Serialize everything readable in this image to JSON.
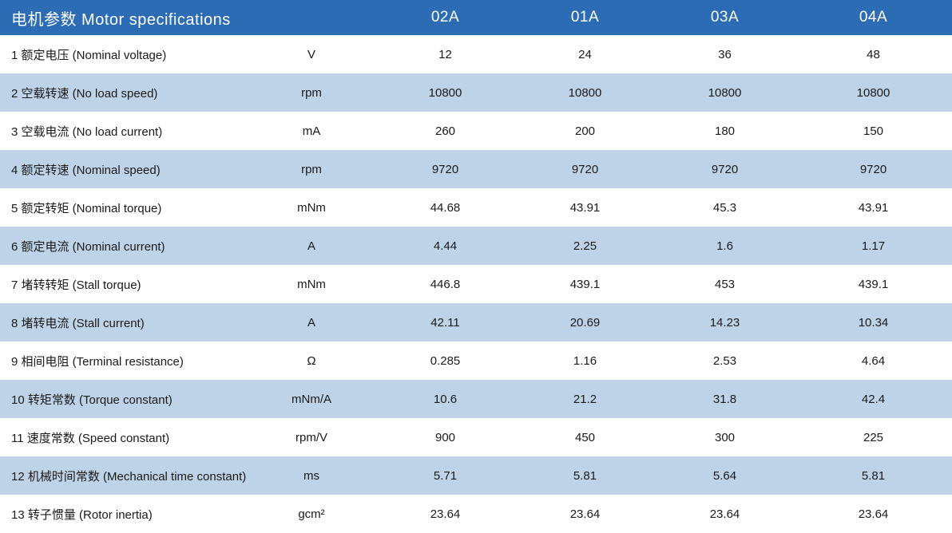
{
  "table": {
    "title": "电机参数 Motor specifications",
    "unit_column_header": "",
    "model_columns": [
      "02A",
      "01A",
      "03A",
      "04A"
    ]
  },
  "colors": {
    "header_bg": "#2B6CB4",
    "alt_row_bg": "#BFD3E8",
    "header_text": "#FFFFFF",
    "body_text": "#1A1A1A"
  },
  "rows": [
    {
      "label": "1 额定电压 (Nominal voltage)",
      "unit": "V",
      "values": [
        "12",
        "24",
        "36",
        "48"
      ]
    },
    {
      "label": "2 空载转速 (No load speed)",
      "unit": "rpm",
      "values": [
        "10800",
        "10800",
        "10800",
        "10800"
      ]
    },
    {
      "label": "3 空载电流 (No load current)",
      "unit": "mA",
      "values": [
        "260",
        "200",
        "180",
        "150"
      ]
    },
    {
      "label": "4 额定转速 (Nominal speed)",
      "unit": "rpm",
      "values": [
        "9720",
        "9720",
        "9720",
        "9720"
      ]
    },
    {
      "label": "5 额定转矩 (Nominal torque)",
      "unit": "mNm",
      "values": [
        "44.68",
        "43.91",
        "45.3",
        "43.91"
      ]
    },
    {
      "label": "6 额定电流 (Nominal current)",
      "unit": "A",
      "values": [
        "4.44",
        "2.25",
        "1.6",
        "1.17"
      ]
    },
    {
      "label": "7 堵转转矩 (Stall torque)",
      "unit": "mNm",
      "values": [
        "446.8",
        "439.1",
        "453",
        "439.1"
      ]
    },
    {
      "label": "8 堵转电流 (Stall current)",
      "unit": "A",
      "values": [
        "42.11",
        "20.69",
        "14.23",
        "10.34"
      ]
    },
    {
      "label": "9 相间电阻 (Terminal resistance)",
      "unit": "Ω",
      "values": [
        "0.285",
        "1.16",
        "2.53",
        "4.64"
      ]
    },
    {
      "label": "10 转矩常数 (Torque constant)",
      "unit": "mNm/A",
      "values": [
        "10.6",
        "21.2",
        "31.8",
        "42.4"
      ]
    },
    {
      "label": "11 速度常数 (Speed constant)",
      "unit": "rpm/V",
      "values": [
        "900",
        "450",
        "300",
        "225"
      ]
    },
    {
      "label": "12 机械时间常数 (Mechanical time constant)",
      "unit": "ms",
      "values": [
        "5.71",
        "5.81",
        "5.64",
        "5.81"
      ]
    },
    {
      "label": "13 转子惯量 (Rotor inertia)",
      "unit": "gcm²",
      "values": [
        "23.64",
        "23.64",
        "23.64",
        "23.64"
      ]
    }
  ]
}
